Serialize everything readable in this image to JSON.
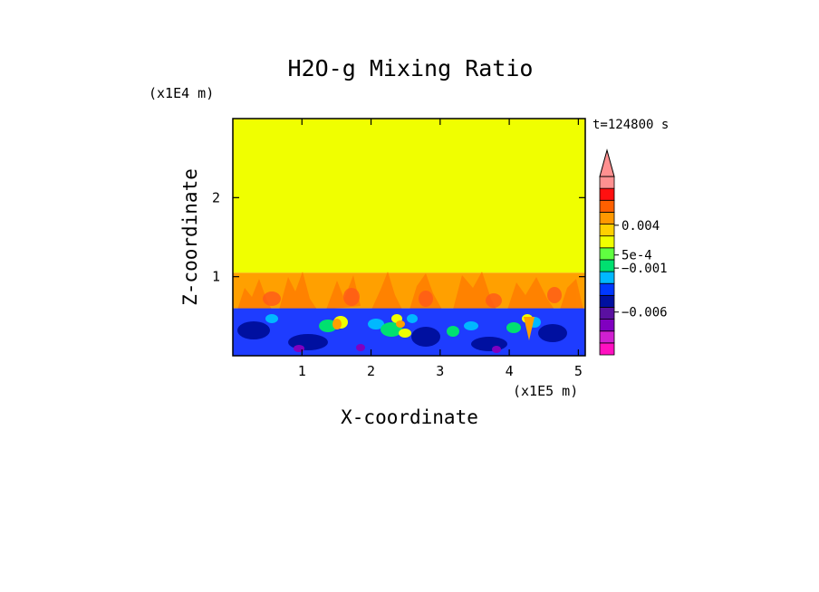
{
  "chart_data": {
    "type": "heatmap",
    "title": "H2O-g Mixing Ratio",
    "xlabel": "X-coordinate",
    "ylabel": "Z-coordinate",
    "x_scale_label": "(x1E5 m)",
    "y_scale_label": "(x1E4 m)",
    "time_label": "t=124800 s",
    "xlim": [
      0,
      5.1
    ],
    "ylim": [
      0,
      3.0
    ],
    "x_ticks": [
      1,
      2,
      3,
      4,
      5
    ],
    "x_tick_labels": [
      "1",
      "2",
      "3",
      "4",
      "5"
    ],
    "y_ticks": [
      1,
      2
    ],
    "y_tick_labels": [
      "1",
      "2"
    ],
    "regions": [
      {
        "name": "upper-layer",
        "z_range": [
          1.05,
          3.0
        ],
        "color": "#f0ff00"
      },
      {
        "name": "transition-layer",
        "z_range": [
          0.6,
          1.05
        ],
        "color": "#ffa000"
      },
      {
        "name": "lower-layer",
        "z_range": [
          0.0,
          0.6
        ],
        "color": "#1e3cff"
      }
    ],
    "colorbar": {
      "colors": [
        "#ff10c0",
        "#d020d0",
        "#8000c0",
        "#5a10a0",
        "#0010a0",
        "#0038ff",
        "#00b8ff",
        "#00e070",
        "#60ff40",
        "#f0ff00",
        "#ffd000",
        "#ff9800",
        "#ff6000",
        "#ff1010",
        "#ff9090"
      ],
      "arrow_color": "#ff9090",
      "labels": [
        {
          "text": "0.004",
          "level": 10.9
        },
        {
          "text": "5e-4",
          "level": 8.4
        },
        {
          "text": "−0.001",
          "level": 7.3
        },
        {
          "text": "−0.006",
          "level": 3.6
        }
      ]
    }
  }
}
